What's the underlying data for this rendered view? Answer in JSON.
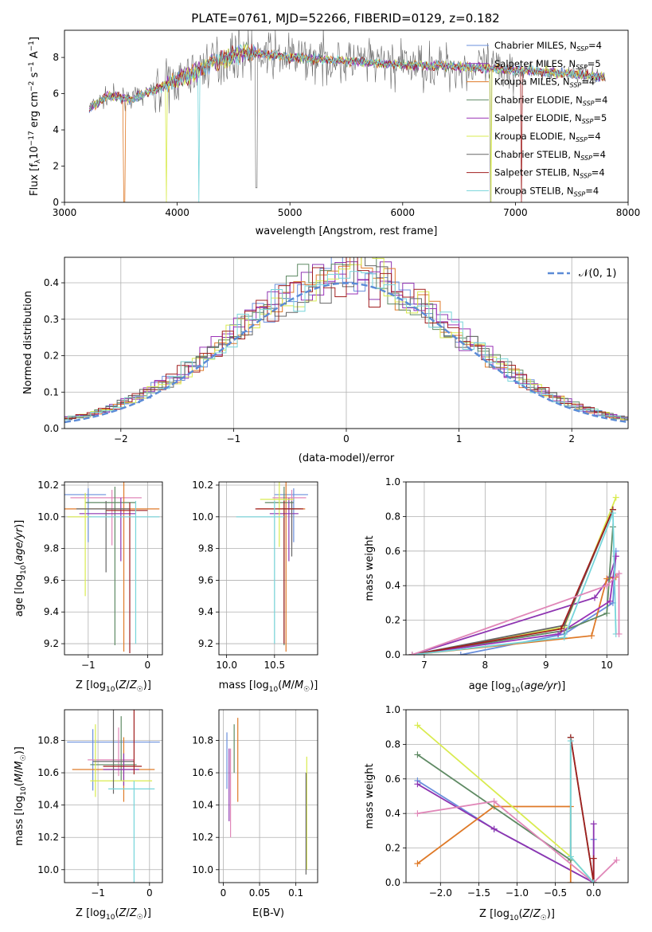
{
  "title": "PLATE=0761, MJD=52266, FIBERID=0129, z=0.182",
  "colors": {
    "c0": "#6a8fdc",
    "c1": "#8e35b1",
    "c2": "#df7a28",
    "c3": "#5f8a64",
    "c4": "#9a32b6",
    "c5": "#d9eb4f",
    "c6": "#666666",
    "c7": "#a11f1f",
    "c8": "#76d5da",
    "gauss": "#5b8bd6",
    "pink": "#e087b8"
  },
  "legend": [
    "Chabrier MILES, N_SSP=4",
    "Salpeter MILES, N_SSP=5",
    "Kroupa MILES, N_SSP=4",
    "Chabrier ELODIE, N_SSP=4",
    "Salpeter ELODIE, N_SSP=5",
    "Kroupa ELODIE, N_SSP=4",
    "Chabrier STELIB, N_SSP=4",
    "Salpeter STELIB, N_SSP=4",
    "Kroupa STELIB, N_SSP=4"
  ],
  "chart_data": [
    {
      "id": "spectrum",
      "type": "line",
      "title": "PLATE=0761, MJD=52266, FIBERID=0129, z=0.182",
      "xlabel": "wavelength [Angstrom, rest frame]",
      "ylabel": "Flux [f_λ10^-17 erg cm^-2 s^-1 A^-1]",
      "xlim": [
        3000,
        8000
      ],
      "ylim": [
        0,
        9.5
      ],
      "xticks": [
        3000,
        4000,
        5000,
        6000,
        7000,
        8000
      ],
      "yticks": [
        0,
        2,
        4,
        6,
        8
      ],
      "continuum": [
        [
          3220,
          5.2
        ],
        [
          3400,
          5.9
        ],
        [
          3600,
          5.7
        ],
        [
          3800,
          6.2
        ],
        [
          3950,
          6.6
        ],
        [
          4100,
          7.0
        ],
        [
          4300,
          7.7
        ],
        [
          4600,
          8.3
        ],
        [
          5000,
          8.0
        ],
        [
          5500,
          7.8
        ],
        [
          6000,
          7.6
        ],
        [
          6500,
          7.5
        ],
        [
          7000,
          7.3
        ],
        [
          7500,
          7.1
        ],
        [
          7800,
          6.9
        ]
      ],
      "absorption_dips": [
        3530,
        3900,
        4190,
        4700,
        6780,
        7050
      ],
      "legend_position": "upper-right"
    },
    {
      "id": "residuals",
      "type": "line",
      "xlabel": "(data-model)/error",
      "ylabel": "Normed distribution",
      "xlim": [
        -2.5,
        2.5
      ],
      "ylim": [
        0,
        0.47
      ],
      "xticks": [
        -2,
        -1,
        0,
        1,
        2
      ],
      "yticks": [
        0.0,
        0.1,
        0.2,
        0.3,
        0.4
      ],
      "gaussian_label": "𝒩(0, 1)",
      "grid": true,
      "legend_position": "upper-right"
    },
    {
      "id": "age-vs-Z",
      "type": "scatter",
      "xlabel": "Z [log10(Z/Z☉)]",
      "ylabel": "age  [log10(age/yr)]",
      "xlim": [
        -1.4,
        0.25
      ],
      "ylim": [
        9.13,
        10.22
      ],
      "xticks": [
        -1,
        0
      ],
      "yticks": [
        9.2,
        9.4,
        9.6,
        9.8,
        10.0,
        10.2
      ],
      "points": [
        [
          -1.0,
          10.14,
          0.6,
          0.3,
          0.04,
          0.3
        ],
        [
          -0.6,
          10.12,
          0.7,
          0.5,
          0.05,
          0.3
        ],
        [
          -0.4,
          10.05,
          1.0,
          0.6,
          0.2,
          0.9
        ],
        [
          -0.55,
          10.09,
          0.5,
          0.35,
          0.1,
          0.9
        ],
        [
          -0.45,
          10.02,
          0.7,
          0.25,
          0.1,
          0.3
        ],
        [
          -1.05,
          10.0,
          0.3,
          0.1,
          0.15,
          0.5
        ],
        [
          -0.7,
          10.05,
          0.5,
          0.4,
          0.05,
          0.4
        ],
        [
          -0.3,
          10.04,
          0.4,
          0.3,
          0.05,
          0.9
        ],
        [
          -0.2,
          10.0,
          0.8,
          0.4,
          0.1,
          0.8
        ]
      ],
      "grid": true
    },
    {
      "id": "age-vs-mass",
      "type": "scatter",
      "xlabel": "mass [log10(M/M☉)]",
      "ylabel": "",
      "xlim": [
        9.92,
        10.95
      ],
      "ylim": [
        9.13,
        10.22
      ],
      "xticks": [
        10.0,
        10.5
      ],
      "yticks": [
        9.2,
        9.4,
        9.6,
        9.8,
        10.0,
        10.2
      ],
      "points": [
        [
          10.7,
          10.14,
          0.2,
          0.15,
          0.04,
          0.3
        ],
        [
          10.68,
          10.12,
          0.2,
          0.15,
          0.05,
          0.3
        ],
        [
          10.62,
          10.05,
          0.3,
          0.2,
          0.2,
          0.9
        ],
        [
          10.6,
          10.09,
          0.2,
          0.1,
          0.1,
          0.9
        ],
        [
          10.65,
          10.02,
          0.2,
          0.1,
          0.1,
          0.3
        ],
        [
          10.55,
          10.11,
          0.2,
          0.15,
          0.15,
          0.3
        ],
        [
          10.68,
          10.05,
          0.1,
          0.1,
          0.05,
          0.3
        ],
        [
          10.6,
          10.05,
          0.3,
          0.2,
          0.05,
          0.85
        ],
        [
          10.5,
          10.0,
          0.4,
          0.1,
          0.1,
          0.8
        ]
      ],
      "grid": true
    },
    {
      "id": "weight-vs-age",
      "type": "line",
      "xlabel": "age  [log10(age/yr)]",
      "ylabel": "mass weight",
      "xlim": [
        6.7,
        10.35
      ],
      "ylim": [
        0,
        1.0
      ],
      "xticks": [
        7,
        8,
        9,
        10
      ],
      "yticks": [
        0.0,
        0.2,
        0.4,
        0.6,
        0.8,
        1.0
      ],
      "series": [
        [
          [
            7.6,
            0.0
          ],
          [
            9.3,
            0.12
          ],
          [
            10.1,
            0.3
          ],
          [
            10.15,
            0.6
          ]
        ],
        [
          [
            6.8,
            0.0
          ],
          [
            9.8,
            0.33
          ],
          [
            10.05,
            0.45
          ],
          [
            10.15,
            0.57
          ]
        ],
        [
          [
            6.8,
            0.0
          ],
          [
            9.75,
            0.11
          ],
          [
            10.0,
            0.44
          ],
          [
            10.15,
            0.45
          ]
        ],
        [
          [
            6.8,
            0.0
          ],
          [
            9.3,
            0.14
          ],
          [
            10.0,
            0.24
          ],
          [
            10.1,
            0.74
          ]
        ],
        [
          [
            6.8,
            0.0
          ],
          [
            9.2,
            0.12
          ],
          [
            10.05,
            0.31
          ],
          [
            10.15,
            0.57
          ]
        ],
        [
          [
            6.8,
            0.0
          ],
          [
            9.3,
            0.16
          ],
          [
            10.15,
            0.91
          ]
        ],
        [
          [
            6.8,
            0.0
          ],
          [
            9.3,
            0.17
          ],
          [
            10.1,
            0.84
          ]
        ],
        [
          [
            6.8,
            0.0
          ],
          [
            9.25,
            0.15
          ],
          [
            10.1,
            0.84
          ]
        ],
        [
          [
            6.8,
            0.0
          ],
          [
            9.3,
            0.1
          ],
          [
            10.1,
            0.82
          ],
          [
            10.15,
            0.12
          ]
        ],
        [
          [
            6.8,
            0.0
          ],
          [
            10.0,
            0.4
          ],
          [
            10.2,
            0.47
          ],
          [
            10.2,
            0.12
          ]
        ]
      ],
      "grid": true
    },
    {
      "id": "mass-vs-Z",
      "type": "scatter",
      "xlabel": "Z [log10(Z/Z☉)]",
      "ylabel": "mass [log10(M/M☉)]",
      "xlim": [
        -1.65,
        0.25
      ],
      "ylim": [
        9.92,
        10.99
      ],
      "xticks": [
        -1,
        0
      ],
      "yticks": [
        10.0,
        10.2,
        10.4,
        10.6,
        10.8
      ],
      "points": [
        [
          -1.1,
          10.79,
          0.5,
          1.3,
          0.08,
          0.3
        ],
        [
          -0.6,
          10.68,
          0.6,
          0.3,
          0.2,
          0.1
        ],
        [
          -0.5,
          10.62,
          1.0,
          0.6,
          0.2,
          0.2
        ],
        [
          -0.55,
          10.65,
          0.6,
          0.3,
          0.3,
          0.1
        ],
        [
          -0.5,
          10.62,
          0.4,
          0.3,
          0.1,
          0.1
        ],
        [
          -1.05,
          10.55,
          0.1,
          1.1,
          0.35,
          0.1
        ],
        [
          -0.7,
          10.67,
          0.4,
          0.4,
          0.7,
          0.2
        ],
        [
          -0.3,
          10.64,
          0.6,
          0.15,
          0.5,
          0.05
        ],
        [
          -0.3,
          10.5,
          0.5,
          0.4,
          0.05,
          0.6
        ]
      ],
      "grid": true
    },
    {
      "id": "mass-vs-ebv",
      "type": "scatter",
      "xlabel": "E(B-V)",
      "ylabel": "",
      "xlim": [
        -0.006,
        0.13
      ],
      "ylim": [
        9.92,
        10.99
      ],
      "xticks": [
        0.0,
        0.05,
        0.1
      ],
      "yticks": [
        10.0,
        10.2,
        10.4,
        10.6,
        10.8
      ],
      "segments": [
        [
          0.005,
          10.5,
          10.85
        ],
        [
          0.01,
          10.2,
          10.75
        ],
        [
          0.02,
          10.42,
          10.94
        ],
        [
          0.015,
          10.6,
          10.9
        ],
        [
          0.008,
          10.3,
          10.75
        ],
        [
          0.115,
          10.0,
          10.7
        ],
        [
          0.114,
          9.97,
          10.6
        ]
      ],
      "grid": true
    },
    {
      "id": "weight-vs-Z",
      "type": "line",
      "xlabel": "Z [log10(Z/Z☉)]",
      "ylabel": "mass weight",
      "xlim": [
        -2.45,
        0.45
      ],
      "ylim": [
        0,
        1.0
      ],
      "xticks": [
        -2.0,
        -1.5,
        -1.0,
        -0.5,
        0.0
      ],
      "yticks": [
        0.0,
        0.2,
        0.4,
        0.6,
        0.8,
        1.0
      ],
      "series": [
        [
          [
            -2.3,
            0.59
          ],
          [
            -1.3,
            0.31
          ],
          [
            0.0,
            0.0
          ],
          [
            0.0,
            0.25
          ]
        ],
        [
          [
            -2.3,
            0.57
          ],
          [
            -1.3,
            0.31
          ],
          [
            0.0,
            0.0
          ],
          [
            0.0,
            0.34
          ]
        ],
        [
          [
            -2.3,
            0.11
          ],
          [
            -1.3,
            0.44
          ],
          [
            -0.3,
            0.44
          ],
          [
            -0.3,
            0.0
          ]
        ],
        [
          [
            -2.3,
            0.74
          ],
          [
            -0.3,
            0.13
          ],
          [
            -0.3,
            0.84
          ],
          [
            0.0,
            0.0
          ]
        ],
        [
          [
            -2.3,
            0.91
          ],
          [
            -0.3,
            0.15
          ],
          [
            0.0,
            0.0
          ]
        ],
        [
          [
            -2.3,
            0.4
          ],
          [
            -1.3,
            0.47
          ],
          [
            0.0,
            0.0
          ],
          [
            0.3,
            0.13
          ]
        ],
        [
          [
            -0.3,
            0.84
          ],
          [
            0.0,
            0.0
          ],
          [
            0.0,
            0.14
          ]
        ],
        [
          [
            -0.3,
            0.82
          ],
          [
            -0.3,
            0.15
          ],
          [
            0.0,
            0.0
          ]
        ]
      ],
      "grid": true
    }
  ]
}
